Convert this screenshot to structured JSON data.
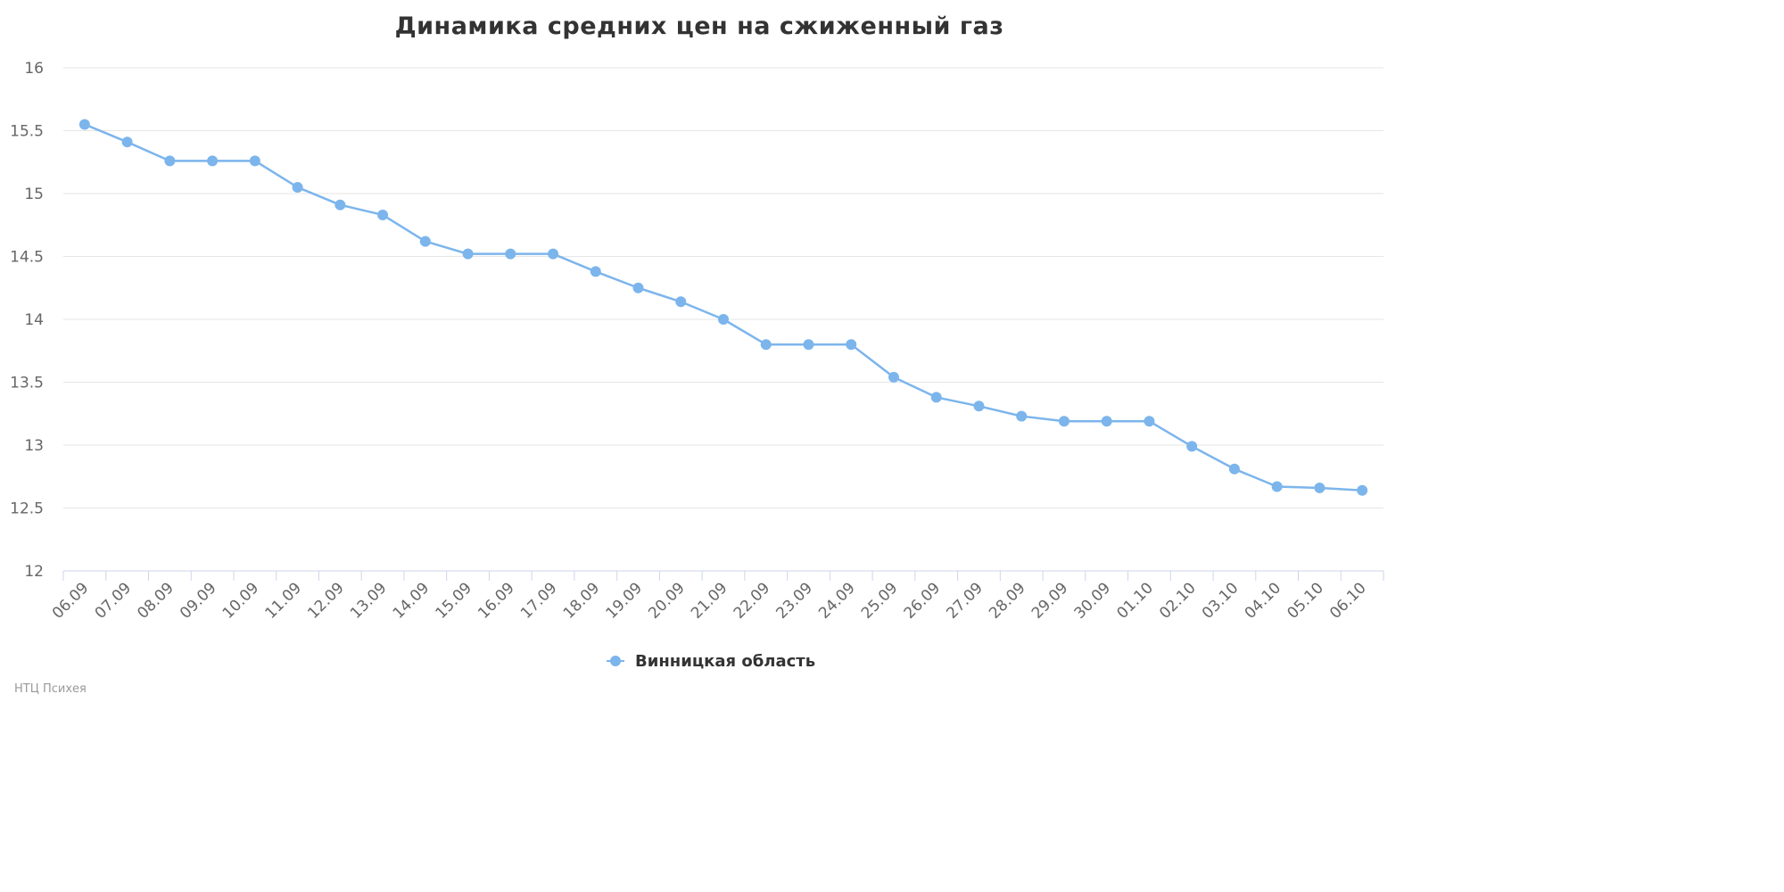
{
  "chart_data": {
    "type": "line",
    "title": "Динамика средних цен на сжиженный газ",
    "xlabel": "",
    "ylabel": "",
    "categories": [
      "06.09",
      "07.09",
      "08.09",
      "09.09",
      "10.09",
      "11.09",
      "12.09",
      "13.09",
      "14.09",
      "15.09",
      "16.09",
      "17.09",
      "18.09",
      "19.09",
      "20.09",
      "21.09",
      "22.09",
      "23.09",
      "24.09",
      "25.09",
      "26.09",
      "27.09",
      "28.09",
      "29.09",
      "30.09",
      "01.10",
      "02.10",
      "03.10",
      "04.10",
      "05.10",
      "06.10"
    ],
    "series": [
      {
        "name": "Винницкая область",
        "color": "#7cb5ec",
        "values": [
          15.55,
          15.41,
          15.26,
          15.26,
          15.26,
          15.05,
          14.91,
          14.83,
          14.62,
          14.52,
          14.52,
          14.52,
          14.38,
          14.25,
          14.14,
          14.0,
          13.8,
          13.8,
          13.8,
          13.54,
          13.38,
          13.31,
          13.23,
          13.19,
          13.19,
          13.19,
          12.99,
          12.81,
          12.67,
          12.66,
          12.64
        ]
      }
    ],
    "ylim": [
      12,
      16
    ],
    "yticks": [
      "12",
      "12.5",
      "13",
      "13.5",
      "14",
      "14.5",
      "15",
      "15.5",
      "16"
    ],
    "grid": true,
    "legend_position": "bottom-center"
  },
  "credits": "НТЦ Психея"
}
